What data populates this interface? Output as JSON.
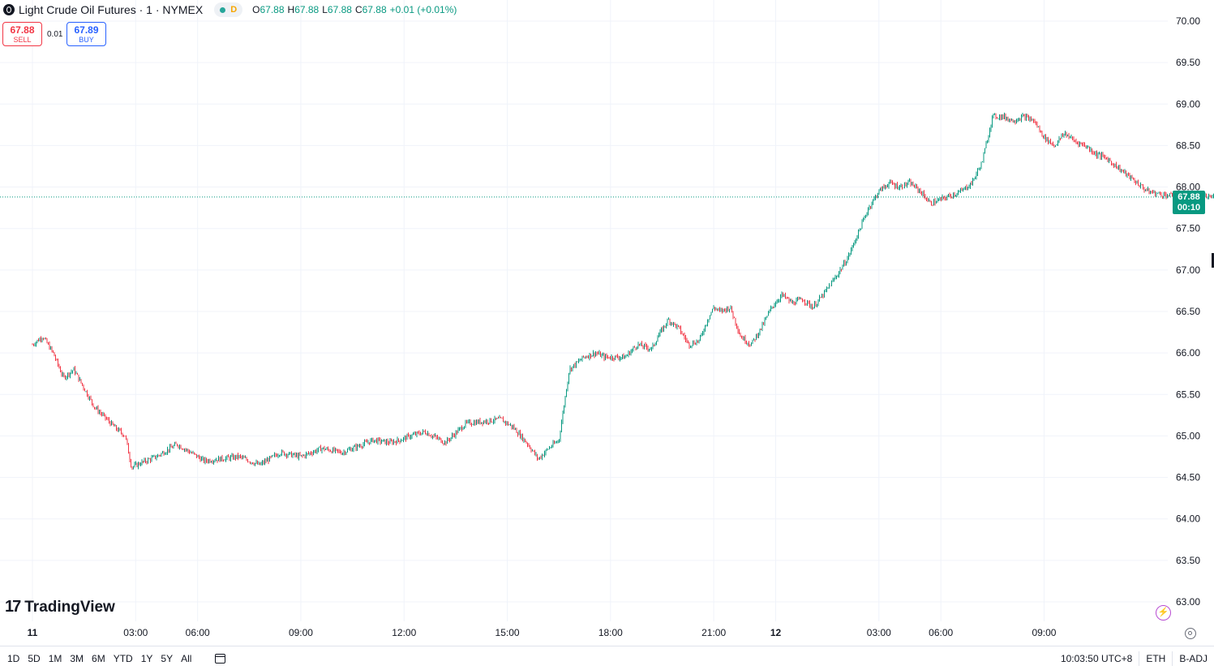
{
  "legend": {
    "title": "Light Crude Oil Futures · 1 · NYMEX",
    "status_label": "D",
    "open_label": "O",
    "open": "67.88",
    "high_label": "H",
    "high": "67.88",
    "low_label": "L",
    "low": "67.88",
    "close_label": "C",
    "close": "67.88",
    "change": "+0.01 (+0.01%)"
  },
  "trade": {
    "sell_price": "67.88",
    "sell_label": "SELL",
    "spread": "0.01",
    "buy_price": "67.89",
    "buy_label": "BUY"
  },
  "last_price": {
    "value": "67.88",
    "countdown": "00:10"
  },
  "logo": {
    "name": "TradingView"
  },
  "bottom_bar": {
    "ranges": [
      "1D",
      "5D",
      "1M",
      "3M",
      "6M",
      "YTD",
      "1Y",
      "5Y",
      "All"
    ],
    "time": "10:03:50 UTC+8",
    "session": "ETH",
    "adjust": "B-ADJ"
  },
  "colors": {
    "up": "#089981",
    "down": "#f23645",
    "grid": "#f0f3fa",
    "text": "#131722"
  },
  "chart_data": {
    "type": "line",
    "title": "Light Crude Oil Futures · 1 · NYMEX",
    "y_ticks": [
      "70.00",
      "69.50",
      "69.00",
      "68.50",
      "68.00",
      "67.50",
      "67.00",
      "66.50",
      "66.00",
      "65.50",
      "65.00",
      "64.50",
      "64.00",
      "63.50",
      "63.00"
    ],
    "x_ticks": [
      "11",
      "03:00",
      "06:00",
      "09:00",
      "12:00",
      "15:00",
      "18:00",
      "21:00",
      "12",
      "03:00",
      "06:00",
      "09:00"
    ],
    "ylim": [
      62.7,
      70.25
    ],
    "grid": true,
    "x_range_hours": [
      0,
      57.3
    ],
    "series": [
      {
        "x": [
          0,
          0.5,
          1.0,
          1.5,
          2.0,
          3.0,
          4.0,
          4.5,
          4.8,
          5.3,
          5.7,
          6.0,
          7.0,
          8.0,
          8.3,
          9.0,
          10.0,
          11.0,
          12.0,
          13.0,
          14.0,
          15.0,
          15.8,
          16.5,
          17.3,
          17.8,
          18.3,
          19.0,
          20.0,
          21.0,
          22.0,
          22.7,
          23.3,
          24.0,
          24.5,
          25.0,
          25.5,
          26.0,
          26.7,
          27.3,
          27.7,
          28.3,
          28.7,
          29.3,
          30.0,
          30.3,
          30.8,
          31.3,
          31.8,
          32.3,
          32.7,
          33.0,
          33.3,
          33.8,
          34.3,
          34.8,
          35.3,
          35.8,
          36.3,
          36.8,
          37.3,
          37.8,
          38.3,
          39.0,
          39.5,
          40.0,
          40.5,
          41.0,
          41.5,
          42.0,
          42.5,
          43.0,
          43.5,
          44.0,
          44.5,
          45.0,
          45.5,
          46.0,
          46.5,
          47.0,
          47.5,
          48.0,
          48.5,
          49.0,
          49.5,
          50.0,
          50.5,
          51.0,
          51.5,
          52.0,
          52.5,
          53.0,
          53.5,
          54.0,
          54.5,
          55.0,
          55.5,
          56.0,
          56.5,
          57.0,
          57.3
        ],
        "close": [
          66.1,
          66.2,
          66.0,
          65.7,
          65.8,
          65.35,
          65.1,
          65.0,
          64.62,
          64.68,
          64.72,
          64.75,
          64.9,
          64.75,
          64.7,
          64.72,
          64.75,
          64.65,
          64.8,
          64.75,
          64.85,
          64.8,
          64.88,
          64.95,
          64.92,
          64.95,
          65.0,
          65.05,
          64.92,
          65.15,
          65.18,
          65.2,
          65.1,
          64.9,
          64.72,
          64.85,
          64.95,
          65.8,
          65.95,
          66.0,
          65.95,
          65.95,
          65.95,
          66.1,
          66.05,
          66.2,
          66.4,
          66.3,
          66.1,
          66.15,
          66.4,
          66.55,
          66.5,
          66.55,
          66.2,
          66.1,
          66.3,
          66.55,
          66.7,
          66.6,
          66.65,
          66.55,
          66.7,
          66.95,
          67.15,
          67.45,
          67.75,
          67.95,
          68.05,
          68.0,
          68.05,
          67.95,
          67.8,
          67.85,
          67.9,
          67.95,
          68.05,
          68.3,
          68.85,
          68.85,
          68.8,
          68.85,
          68.8,
          68.6,
          68.5,
          68.65,
          68.55,
          68.5,
          68.4,
          68.35,
          68.25,
          68.15,
          68.05,
          67.95,
          67.92,
          67.9,
          67.88,
          67.9,
          67.88,
          67.88,
          67.88
        ]
      }
    ]
  }
}
